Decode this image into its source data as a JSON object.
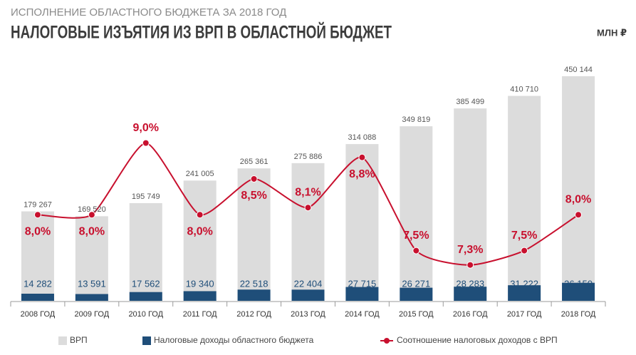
{
  "chart_data": {
    "type": "bar",
    "supertitle": "ИСПОЛНЕНИЕ ОБЛАСТНОГО БЮДЖЕТА ЗА 2018 ГОД",
    "title": "НАЛОГОВЫЕ ИЗЪЯТИЯ ИЗ ВРП В ОБЛАСТНОЙ БЮДЖЕТ",
    "unit": "МЛН ₽",
    "categories": [
      "2008 ГОД",
      "2009 ГОД",
      "2010 ГОД",
      "2011 ГОД",
      "2012 ГОД",
      "2013 ГОД",
      "2014 ГОД",
      "2015 ГОД",
      "2016 ГОД",
      "2017 ГОД",
      "2018 ГОД"
    ],
    "ylim": [
      0,
      460000
    ],
    "y2lim": [
      6.8,
      10
    ],
    "series": [
      {
        "name": "ВРП",
        "type": "bar",
        "color": "#dcdcdc",
        "values": [
          179267,
          169520,
          195749,
          241005,
          265361,
          275886,
          314088,
          349819,
          385499,
          410710,
          450144
        ],
        "value_labels": [
          "179 267",
          "169 520",
          "195 749",
          "241 005",
          "265 361",
          "275 886",
          "314 088",
          "349 819",
          "385 499",
          "410 710",
          "450 144"
        ]
      },
      {
        "name": "Налоговые доходы областного бюджета",
        "type": "bar",
        "color": "#1f4e79",
        "values": [
          14282,
          13591,
          17562,
          19340,
          22518,
          22404,
          27715,
          26271,
          28283,
          31222,
          36150
        ],
        "value_labels": [
          "14 282",
          "13 591",
          "17 562",
          "19 340",
          "22 518",
          "22 404",
          "27 715",
          "26 271",
          "28 283",
          "31 222",
          "36 150"
        ]
      },
      {
        "name": "Соотношение налоговых доходов с ВРП",
        "type": "line",
        "axis": "y2",
        "color": "#c8102e",
        "values": [
          8.0,
          8.0,
          9.0,
          8.0,
          8.5,
          8.1,
          8.8,
          7.5,
          7.3,
          7.5,
          8.0
        ],
        "value_labels": [
          "8,0%",
          "8,0%",
          "9,0%",
          "8,0%",
          "8,5%",
          "8,1%",
          "8,8%",
          "7,5%",
          "7,3%",
          "7,5%",
          "8,0%"
        ]
      }
    ]
  }
}
